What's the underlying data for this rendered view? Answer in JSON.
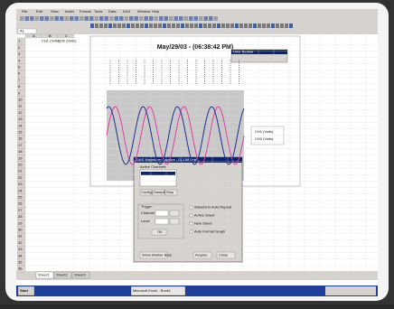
{
  "window": {
    "menu": [
      "File",
      "Edit",
      "View",
      "Insert",
      "Format",
      "Tools",
      "Data",
      "DAS",
      "Window",
      "Help"
    ],
    "name_box": "A1"
  },
  "sheet": {
    "columns": [
      "A",
      "B",
      "C"
    ],
    "headers": [
      "CH1 (Volts)",
      "CH2 (Volts)"
    ],
    "rows": [
      1,
      2,
      3,
      4,
      5,
      6,
      7,
      8,
      9,
      10,
      11,
      12,
      13,
      14,
      15,
      16,
      17,
      18,
      19,
      20,
      21,
      22,
      23,
      24,
      25,
      26,
      27,
      28,
      29,
      30,
      31,
      32,
      33,
      34,
      35,
      36
    ],
    "tabs": [
      "Sheet1",
      "Sheet2",
      "Sheet3"
    ]
  },
  "chart": {
    "title": "May/29/03 - (06:38:42 PM)",
    "legend": [
      "CH1 (Volts)",
      "CH2 (Volts)"
    ]
  },
  "toolbar": {
    "title": "DAS Toolbar"
  },
  "dialog": {
    "title": "DAS Waveform Capture - DI-158 Unit",
    "list_label": "Active Channels",
    "buttons": [
      "Configure",
      "Sample",
      "Stop"
    ],
    "group": "Trigger",
    "fields": [
      "Channel",
      "Level"
    ],
    "ok": "OK",
    "options": [
      "Waveform Auto Repeat",
      "Active Sheet",
      "New Sheet",
      "Auto Format Graph"
    ],
    "footer": [
      "Show Marker Bars",
      "Acquire",
      "Close"
    ]
  },
  "taskbar": {
    "start": "Start",
    "task": "Microsoft Excel - Book1"
  }
}
